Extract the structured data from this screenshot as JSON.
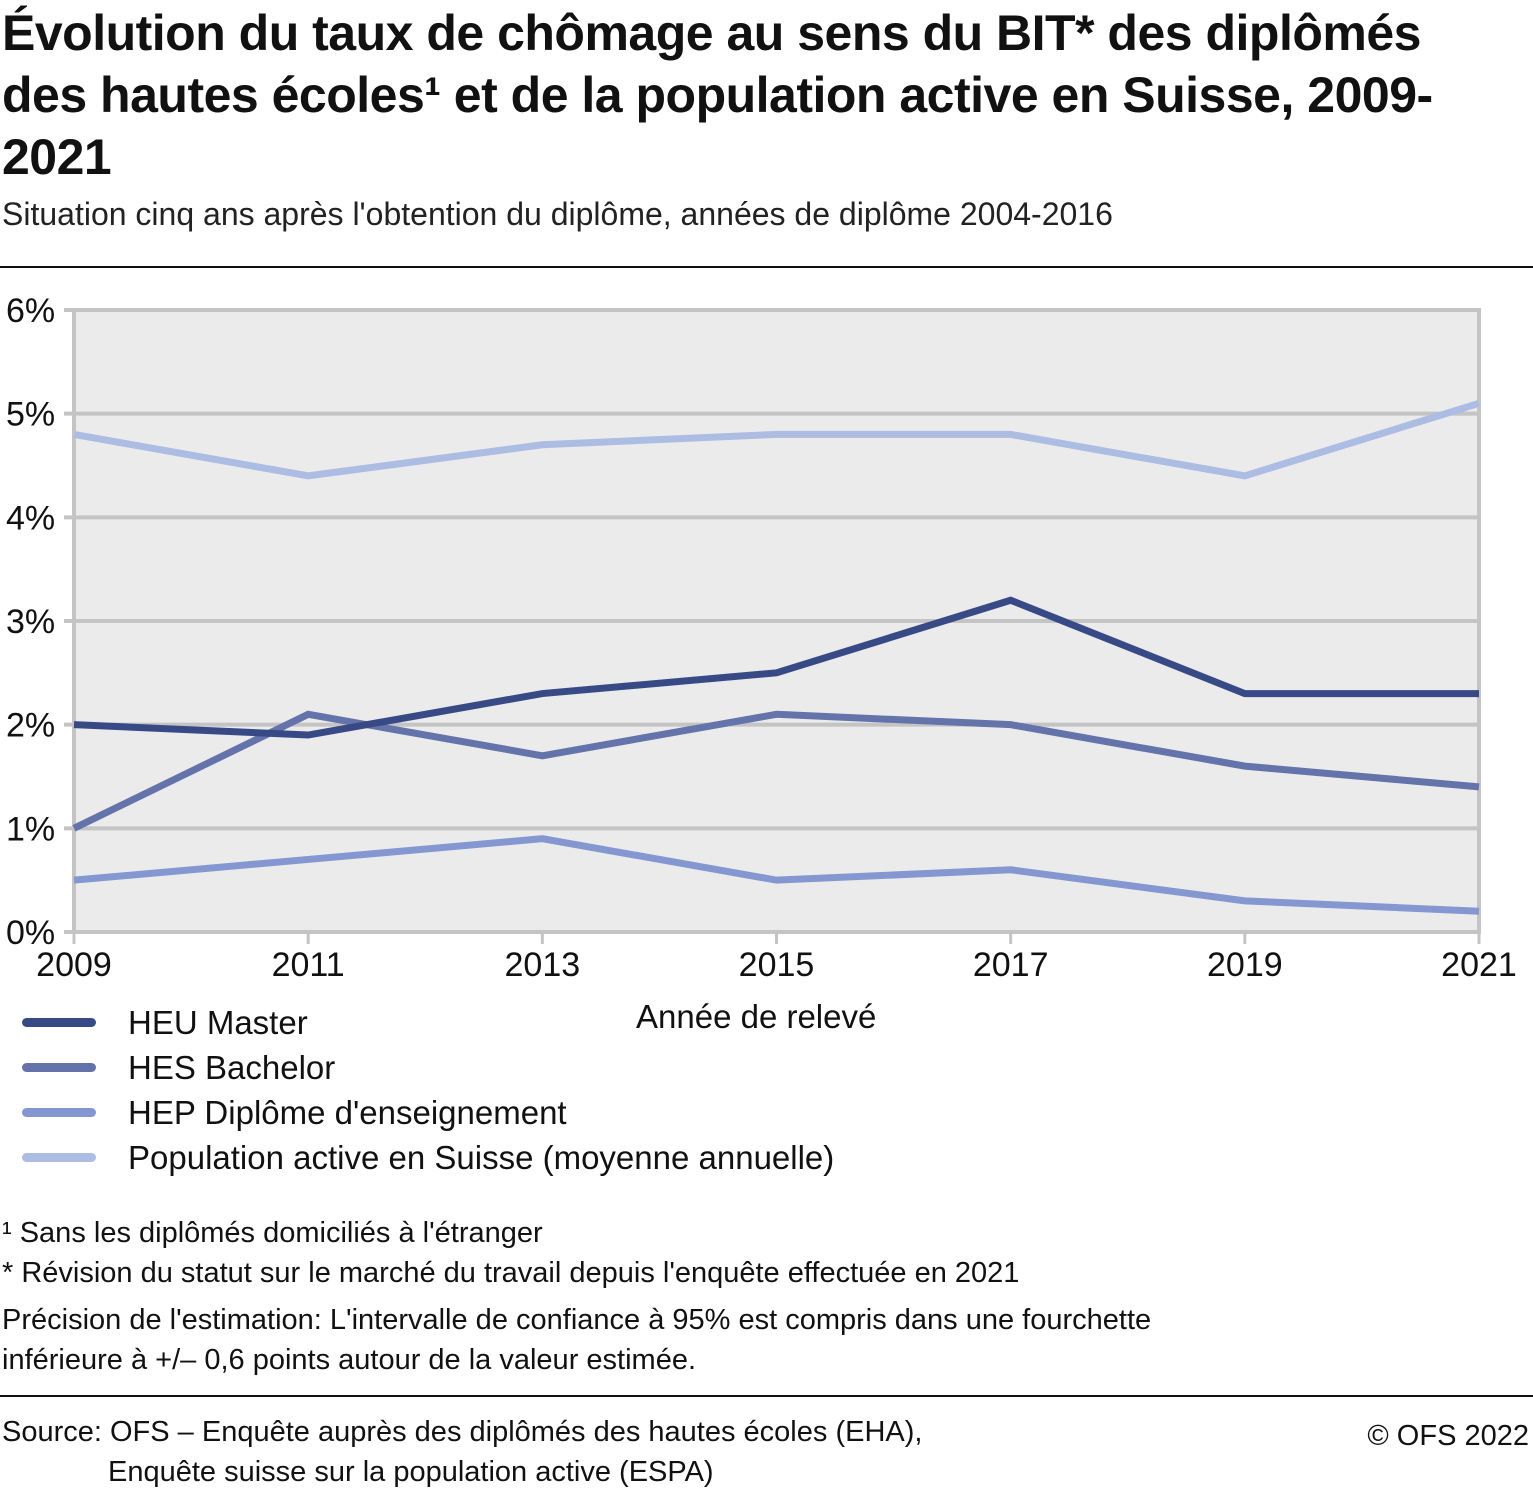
{
  "header": {
    "title": "Évolution du taux de chômage au sens du BIT* des diplômés des hautes écoles¹ et de la population active en Suisse, 2009-2021",
    "subtitle": "Situation cinq ans après l'obtention du diplôme, années de diplôme 2004-2016"
  },
  "chart_data": {
    "type": "line",
    "title": "Évolution du taux de chômage au sens du BIT* des diplômés des hautes écoles¹ et de la population active en Suisse, 2009-2021",
    "subtitle": "Situation cinq ans après l'obtention du diplôme, années de diplôme 2004-2016",
    "xlabel": "Année de relevé",
    "ylabel": "",
    "x": [
      2009,
      2011,
      2013,
      2015,
      2017,
      2019,
      2021
    ],
    "x_tick_labels": [
      "2009",
      "2011",
      "2013",
      "2015",
      "2017",
      "2019",
      "2021"
    ],
    "y_ticks": [
      0,
      1,
      2,
      3,
      4,
      5,
      6
    ],
    "y_tick_labels": [
      "0%",
      "1%",
      "2%",
      "3%",
      "4%",
      "5%",
      "6%"
    ],
    "ylim": [
      0,
      6
    ],
    "xlim": [
      2009,
      2021
    ],
    "grid": true,
    "legend_position": "bottom-left",
    "series": [
      {
        "name": "HEU Master",
        "color": "#384a86",
        "values": [
          2.0,
          1.9,
          2.3,
          2.5,
          3.2,
          2.3,
          2.3
        ]
      },
      {
        "name": "HES Bachelor",
        "color": "#6573ab",
        "values": [
          1.0,
          2.1,
          1.7,
          2.1,
          2.0,
          1.6,
          1.4
        ]
      },
      {
        "name": "HEP Diplôme d'enseignement",
        "color": "#8597d1",
        "values": [
          0.5,
          0.7,
          0.9,
          0.5,
          0.6,
          0.3,
          0.2
        ]
      },
      {
        "name": "Population active en Suisse (moyenne annuelle)",
        "color": "#adbce3",
        "values": [
          4.8,
          4.4,
          4.7,
          4.8,
          4.8,
          4.4,
          5.1
        ]
      }
    ]
  },
  "notes": {
    "footnote1": "¹ Sans les diplômés domiciliés à l'étranger",
    "footnote2": "* Révision du statut sur le marché du travail depuis l'enquête effectuée en 2021",
    "precision_line1": "Précision de l'estimation: L'intervalle de confiance à 95% est compris dans une fourchette",
    "precision_line2": "inférieure à +/– 0,6 points autour de la valeur estimée."
  },
  "footer": {
    "source_line1": "Source: OFS – Enquête auprès des diplômés des hautes écoles (EHA),",
    "source_line2": "Enquête suisse sur la population active (ESPA)",
    "copyright": "© OFS 2022"
  },
  "colors": {
    "plot_background": "#ebebeb",
    "gridline": "#c4c4c4"
  }
}
